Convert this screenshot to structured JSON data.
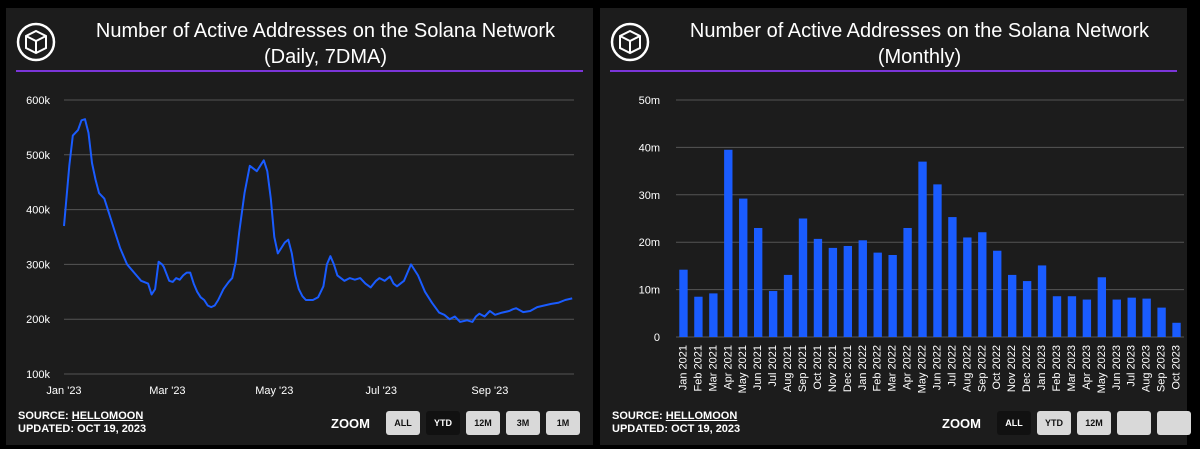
{
  "colors": {
    "panel_bg": "#1c1c1c",
    "accent_rule": "#7b35d8",
    "series": "#1a5cff",
    "grid": "#555555"
  },
  "chart_data": [
    {
      "type": "line",
      "title": "Number of Active Addresses on the Solana Network",
      "subtitle": "(Daily, 7DMA)",
      "xlabel": "",
      "ylabel": "",
      "ylim": [
        100000,
        600000
      ],
      "yticks": [
        100000,
        200000,
        300000,
        400000,
        500000,
        600000
      ],
      "ytick_labels": [
        "100k",
        "200k",
        "300k",
        "400k",
        "500k",
        "600k"
      ],
      "xlim": [
        0,
        291
      ],
      "xticks": [
        0,
        59,
        120,
        181,
        243
      ],
      "xtick_labels": [
        "Jan '23",
        "Mar '23",
        "May '23",
        "Jul '23",
        "Sep '23"
      ],
      "x": [
        0,
        3,
        5,
        8,
        10,
        12,
        14,
        16,
        18,
        20,
        23,
        26,
        29,
        32,
        36,
        40,
        44,
        48,
        50,
        52,
        54,
        56,
        57,
        60,
        62,
        64,
        66,
        68,
        70,
        72,
        74,
        76,
        78,
        80,
        82,
        84,
        86,
        88,
        91,
        94,
        96,
        98,
        100,
        103,
        106,
        110,
        114,
        116,
        118,
        120,
        122,
        124,
        126,
        128,
        130,
        132,
        134,
        136,
        138,
        140,
        142,
        145,
        148,
        150,
        152,
        154,
        156,
        160,
        163,
        166,
        169,
        172,
        175,
        178,
        180,
        183,
        186,
        188,
        190,
        194,
        198,
        202,
        206,
        210,
        214,
        217,
        220,
        223,
        226,
        230,
        233,
        235,
        237,
        240,
        243,
        246,
        250,
        254,
        256,
        258,
        262,
        266,
        270,
        274,
        278,
        282,
        286,
        290
      ],
      "series": [
        {
          "name": "Active Addresses (7DMA)",
          "values": [
            370000,
            480000,
            535000,
            545000,
            563000,
            565000,
            540000,
            485000,
            455000,
            430000,
            420000,
            390000,
            360000,
            330000,
            300000,
            285000,
            270000,
            265000,
            245000,
            255000,
            305000,
            300000,
            295000,
            270000,
            268000,
            275000,
            272000,
            280000,
            285000,
            285000,
            265000,
            250000,
            240000,
            235000,
            225000,
            222000,
            225000,
            235000,
            255000,
            268000,
            275000,
            305000,
            360000,
            430000,
            480000,
            470000,
            490000,
            470000,
            420000,
            350000,
            320000,
            330000,
            340000,
            345000,
            320000,
            280000,
            255000,
            242000,
            235000,
            235000,
            235000,
            240000,
            260000,
            300000,
            315000,
            300000,
            280000,
            270000,
            275000,
            272000,
            275000,
            265000,
            258000,
            270000,
            275000,
            270000,
            278000,
            265000,
            260000,
            270000,
            300000,
            280000,
            250000,
            230000,
            212000,
            208000,
            200000,
            205000,
            195000,
            198000,
            195000,
            205000,
            210000,
            205000,
            215000,
            208000,
            212000,
            215000,
            218000,
            220000,
            213000,
            215000,
            222000,
            225000,
            228000,
            230000,
            235000,
            238000
          ]
        }
      ]
    },
    {
      "type": "bar",
      "title": "Number of Active Addresses on the Solana Network",
      "subtitle": "(Monthly)",
      "xlabel": "",
      "ylabel": "",
      "ylim": [
        0,
        50000000
      ],
      "yticks": [
        0,
        10000000,
        20000000,
        30000000,
        40000000,
        50000000
      ],
      "ytick_labels": [
        "0",
        "10m",
        "20m",
        "30m",
        "40m",
        "50m"
      ],
      "categories": [
        "Jan 2021",
        "Feb 2021",
        "Mar 2021",
        "Apr 2021",
        "May 2021",
        "Jun 2021",
        "Jul 2021",
        "Aug 2021",
        "Sep 2021",
        "Oct 2021",
        "Nov 2021",
        "Dec 2021",
        "Jan 2022",
        "Feb 2022",
        "Mar 2022",
        "Apr 2022",
        "May 2022",
        "Jun 2022",
        "Jul 2022",
        "Aug 2022",
        "Sep 2022",
        "Oct 2022",
        "Nov 2022",
        "Dec 2022",
        "Jan 2023",
        "Feb 2023",
        "Mar 2023",
        "Apr 2023",
        "May 2023",
        "Jun 2023",
        "Jul 2023",
        "Aug 2023",
        "Sep 2023",
        "Oct 2023"
      ],
      "series": [
        {
          "name": "Active Addresses",
          "values": [
            14200000,
            8500000,
            9200000,
            39500000,
            29200000,
            23000000,
            9700000,
            13100000,
            25000000,
            20700000,
            18800000,
            19200000,
            20400000,
            17800000,
            17300000,
            23000000,
            37000000,
            32200000,
            25300000,
            21000000,
            22100000,
            18200000,
            13100000,
            11800000,
            15100000,
            8600000,
            8600000,
            7900000,
            12600000,
            7900000,
            8300000,
            8100000,
            6200000,
            3000000
          ]
        }
      ]
    }
  ],
  "panels": [
    {
      "title_line1": "Number of Active Addresses on the Solana Network",
      "title_line2": "(Daily, 7DMA)",
      "source_label": "SOURCE: ",
      "source_name": "HELLOMOON",
      "updated": "UPDATED: OCT 19, 2023",
      "zoom_label": "ZOOM",
      "zoom_buttons": [
        {
          "label": "ALL",
          "active": false
        },
        {
          "label": "YTD",
          "active": true
        },
        {
          "label": "12M",
          "active": false
        },
        {
          "label": "3M",
          "active": false
        },
        {
          "label": "1M",
          "active": false
        }
      ]
    },
    {
      "title_line1": "Number of Active Addresses on the Solana Network",
      "title_line2": "(Monthly)",
      "source_label": "SOURCE: ",
      "source_name": "HELLOMOON",
      "updated": "UPDATED: OCT 19, 2023",
      "zoom_label": "ZOOM",
      "zoom_buttons": [
        {
          "label": "ALL",
          "active": true
        },
        {
          "label": "YTD",
          "active": false
        },
        {
          "label": "12M",
          "active": false
        },
        {
          "label": "",
          "active": false
        },
        {
          "label": "",
          "active": false
        }
      ]
    }
  ]
}
